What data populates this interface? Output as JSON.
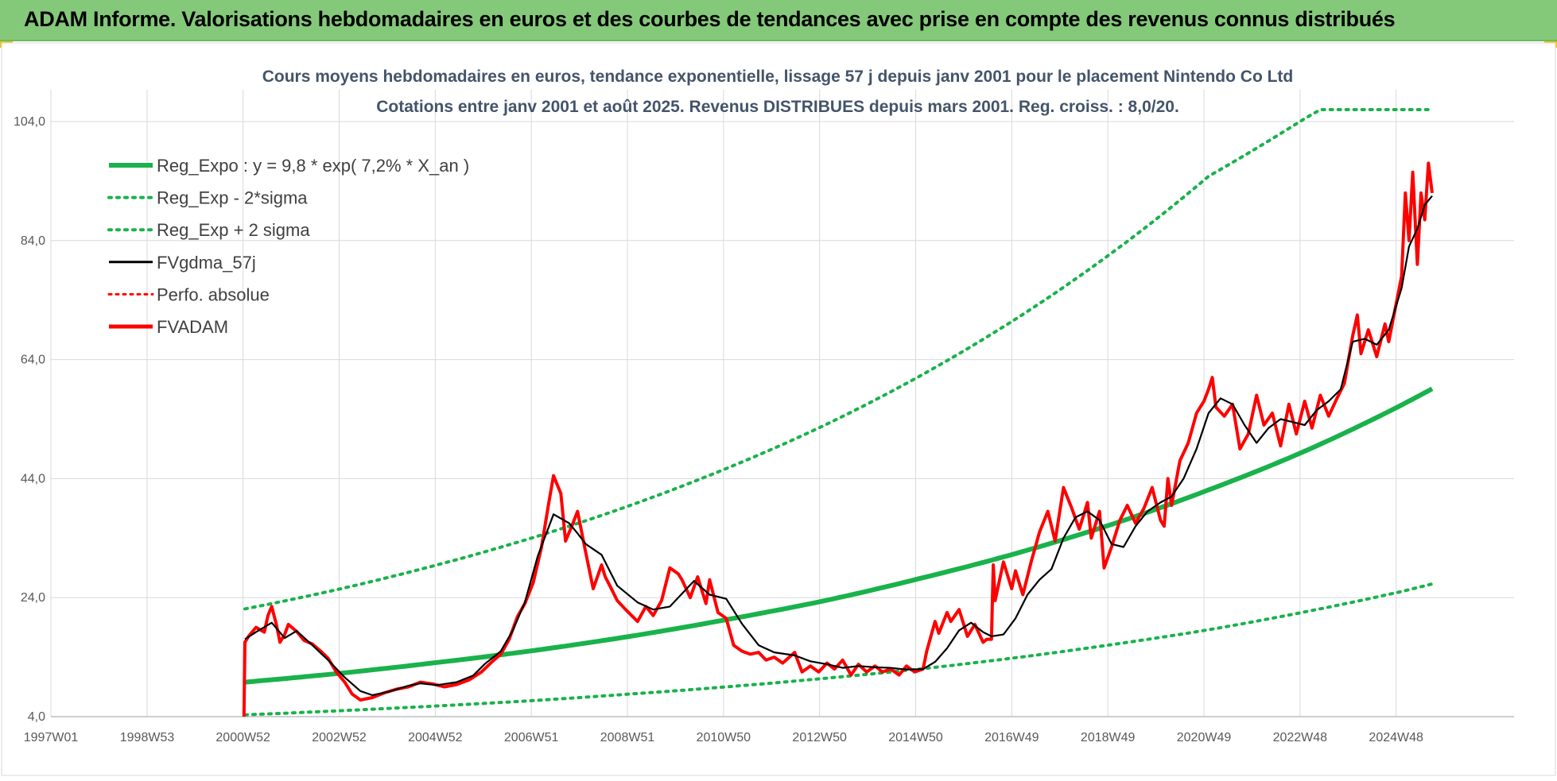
{
  "banner": {
    "title": "ADAM Informe. Valorisations hebdomadaires en euros et des courbes de tendances avec prise en compte des revenus connus distribués"
  },
  "colors": {
    "banner_bg": "#84c97a",
    "reg_expo": "#19b24b",
    "sigma_lines": "#19b24b",
    "fvgdma": "#000000",
    "perfo": "#ff0000",
    "fvadam": "#ff0000",
    "corner_marks": "#f2c200"
  },
  "chart_data": {
    "type": "line",
    "title_line1": "Cours moyens hebdomadaires en euros, tendance exponentielle, lissage 57 j depuis janv 2001  pour le placement Nintendo Co Ltd",
    "title_line2": "Cotations entre janv 2001 et août 2025.  Revenus DISTRIBUES depuis mars 2001. Reg. croiss. : 8,0/20.",
    "xlabel": "",
    "ylabel": "",
    "x_axis_type": "date",
    "xlim": [
      "1997-01-01",
      "2025-08-31"
    ],
    "ylim": [
      4.0,
      104.0
    ],
    "ytick_labels": [
      "4,0",
      "24,0",
      "44,0",
      "64,0",
      "84,0",
      "104,0"
    ],
    "ytick_values": [
      4,
      24,
      44,
      64,
      84,
      104
    ],
    "xtick_labels": [
      "1997W01",
      "1998W53",
      "2000W52",
      "2002W52",
      "2004W52",
      "2006W51",
      "2008W51",
      "2010W50",
      "2012W50",
      "2014W50",
      "2016W49",
      "2018W49",
      "2020W49",
      "2022W48",
      "2024W48"
    ],
    "xtick_dates": [
      "1997-01-01",
      "1998-12-31",
      "2000-12-27",
      "2002-12-25",
      "2004-12-22",
      "2006-12-20",
      "2008-12-17",
      "2010-12-15",
      "2012-12-12",
      "2014-12-10",
      "2016-12-07",
      "2018-12-05",
      "2020-12-02",
      "2022-11-30",
      "2024-11-27"
    ],
    "grid": true,
    "legend_position": "top-left",
    "legend": [
      {
        "label": "Reg_Expo : y = 9,8 * exp( 7,2% *  X_an )",
        "style": "solid-thick",
        "color": "#19b24b"
      },
      {
        "label": "Reg_Exp - 2*sigma",
        "style": "dotted",
        "color": "#19b24b"
      },
      {
        "label": "Reg_Exp + 2 sigma",
        "style": "dotted",
        "color": "#19b24b"
      },
      {
        "label": "FVgdma_57j",
        "style": "solid",
        "color": "#000000"
      },
      {
        "label": "Perfo. absolue",
        "style": "dotted",
        "color": "#ff0000"
      },
      {
        "label": "FVADAM",
        "style": "solid-thick",
        "color": "#ff0000"
      }
    ],
    "series": [
      {
        "name": "Reg_Expo : y = 9,8 * exp( 7,2% *  X_an )",
        "x": [
          "2001-01-10",
          "2003-01-08",
          "2005-01-05",
          "2007-01-03",
          "2009-01-07",
          "2011-01-05",
          "2013-01-02",
          "2015-01-07",
          "2017-01-04",
          "2019-01-02",
          "2021-01-06",
          "2023-01-04",
          "2025-01-01",
          "2025-08-27"
        ],
        "y": [
          9.8,
          11.3,
          13.1,
          15.1,
          17.5,
          20.3,
          23.4,
          27.2,
          31.4,
          36.3,
          42.1,
          48.6,
          56.3,
          59.1
        ]
      },
      {
        "name": "Reg_Exp - 2*sigma",
        "x": [
          "2001-01-10",
          "2003-01-08",
          "2005-01-05",
          "2007-01-03",
          "2009-01-07",
          "2011-01-05",
          "2013-01-02",
          "2015-01-07",
          "2017-01-04",
          "2019-01-02",
          "2021-01-06",
          "2023-01-04",
          "2025-01-01",
          "2025-08-27"
        ],
        "y": [
          4.3,
          5.0,
          5.8,
          6.7,
          7.8,
          9.0,
          10.4,
          12.0,
          13.9,
          16.1,
          18.6,
          21.6,
          25.0,
          26.3
        ]
      },
      {
        "name": "Reg_Exp + 2 sigma",
        "x": [
          "2001-01-10",
          "2003-01-08",
          "2005-01-05",
          "2007-01-03",
          "2009-01-07",
          "2011-01-05",
          "2013-01-02",
          "2015-01-07",
          "2017-01-04",
          "2019-01-02",
          "2021-01-06",
          "2023-01-04",
          "2023-05-03",
          "2025-08-27"
        ],
        "y": [
          22.1,
          25.5,
          29.5,
          34.1,
          39.5,
          45.7,
          52.8,
          61.2,
          70.8,
          81.9,
          94.8,
          104.5,
          106.0,
          106.0
        ]
      },
      {
        "name": "FVgdma_57j",
        "x": [
          "2001-01-10",
          "2001-04-04",
          "2001-08-01",
          "2001-11-07",
          "2002-02-06",
          "2002-06-05",
          "2002-10-02",
          "2003-02-05",
          "2003-06-04",
          "2003-09-03",
          "2004-01-07",
          "2004-06-02",
          "2004-09-01",
          "2005-01-05",
          "2005-06-01",
          "2005-10-05",
          "2006-01-04",
          "2006-05-03",
          "2006-08-02",
          "2006-11-01",
          "2007-02-07",
          "2007-06-06",
          "2007-10-03",
          "2007-12-05",
          "2008-02-06",
          "2008-06-04",
          "2008-10-01",
          "2009-03-04",
          "2009-07-01",
          "2009-11-04",
          "2010-01-06",
          "2010-05-05",
          "2010-09-01",
          "2011-01-05",
          "2011-05-04",
          "2011-09-07",
          "2012-01-04",
          "2012-06-06",
          "2012-10-03",
          "2013-02-06",
          "2013-06-05",
          "2013-10-02",
          "2014-02-05",
          "2014-06-04",
          "2014-10-01",
          "2015-02-04",
          "2015-05-06",
          "2015-08-05",
          "2015-11-04",
          "2016-02-03",
          "2016-05-04",
          "2016-07-06",
          "2016-10-05",
          "2017-01-04",
          "2017-04-05",
          "2017-07-05",
          "2017-10-04",
          "2018-01-03",
          "2018-04-04",
          "2018-07-04",
          "2018-10-03",
          "2019-01-02",
          "2019-04-03",
          "2019-07-03",
          "2019-10-02",
          "2020-01-08",
          "2020-04-01",
          "2020-07-01",
          "2020-10-07",
          "2021-01-06",
          "2021-04-07",
          "2021-07-07",
          "2021-10-06",
          "2022-01-05",
          "2022-04-06",
          "2022-07-06",
          "2022-10-05",
          "2023-01-04",
          "2023-04-05",
          "2023-07-05",
          "2023-10-04",
          "2024-01-03",
          "2024-04-03",
          "2024-07-03",
          "2024-10-02",
          "2025-01-08",
          "2025-03-05",
          "2025-05-07",
          "2025-07-02",
          "2025-08-27"
        ],
        "y": [
          17.0,
          18.2,
          19.8,
          17.2,
          18.4,
          16.0,
          13.5,
          10.6,
          8.3,
          7.6,
          8.2,
          9.2,
          9.6,
          9.3,
          9.8,
          10.9,
          12.9,
          15.0,
          18.5,
          23.2,
          31.0,
          38.0,
          36.5,
          34.8,
          33.0,
          31.2,
          26.0,
          23.2,
          22.0,
          22.5,
          24.0,
          26.8,
          24.5,
          23.8,
          19.6,
          16.0,
          14.8,
          14.3,
          13.3,
          12.8,
          12.2,
          12.5,
          12.3,
          12.2,
          11.9,
          12.0,
          13.2,
          15.5,
          18.5,
          19.8,
          18.2,
          17.5,
          17.8,
          20.5,
          24.5,
          27.0,
          28.8,
          34.0,
          37.5,
          38.5,
          37.0,
          33.0,
          32.5,
          36.0,
          38.5,
          40.0,
          41.0,
          44.0,
          49.0,
          55.0,
          57.5,
          56.5,
          53.0,
          50.0,
          52.5,
          54.0,
          53.5,
          53.0,
          55.5,
          57.0,
          59.0,
          67.0,
          67.5,
          66.5,
          69.0,
          76.0,
          83.0,
          86.0,
          90.0,
          91.5
        ]
      },
      {
        "name": "FVADAM",
        "x": [
          "2001-01-03",
          "2001-01-10",
          "2001-02-07",
          "2001-04-04",
          "2001-06-06",
          "2001-07-04",
          "2001-08-01",
          "2001-09-05",
          "2001-10-03",
          "2001-11-07",
          "2001-12-05",
          "2002-02-06",
          "2002-04-03",
          "2002-06-05",
          "2002-08-07",
          "2002-10-02",
          "2002-12-04",
          "2003-02-05",
          "2003-04-02",
          "2003-06-04",
          "2003-09-03",
          "2003-12-03",
          "2004-03-03",
          "2004-06-02",
          "2004-09-01",
          "2004-12-01",
          "2005-03-02",
          "2005-06-01",
          "2005-09-07",
          "2005-12-07",
          "2006-03-01",
          "2006-05-03",
          "2006-07-05",
          "2006-09-06",
          "2006-11-01",
          "2007-01-03",
          "2007-03-07",
          "2007-05-02",
          "2007-06-06",
          "2007-08-01",
          "2007-09-05",
          "2007-10-31",
          "2007-12-05",
          "2008-02-06",
          "2008-04-02",
          "2008-06-04",
          "2008-07-02",
          "2008-08-06",
          "2008-10-01",
          "2008-12-03",
          "2009-03-04",
          "2009-05-06",
          "2009-07-01",
          "2009-09-02",
          "2009-11-04",
          "2010-01-06",
          "2010-02-03",
          "2010-04-07",
          "2010-06-02",
          "2010-08-04",
          "2010-09-01",
          "2010-11-03",
          "2011-01-05",
          "2011-03-02",
          "2011-05-04",
          "2011-07-06",
          "2011-09-07",
          "2011-11-02",
          "2012-01-04",
          "2012-03-07",
          "2012-06-06",
          "2012-08-01",
          "2012-10-03",
          "2012-12-05",
          "2013-02-06",
          "2013-04-03",
          "2013-06-05",
          "2013-08-07",
          "2013-10-02",
          "2013-12-04",
          "2014-02-05",
          "2014-04-02",
          "2014-06-04",
          "2014-08-06",
          "2014-10-01",
          "2014-12-03",
          "2015-02-04",
          "2015-03-04",
          "2015-05-06",
          "2015-06-03",
          "2015-08-05",
          "2015-09-02",
          "2015-11-04",
          "2016-01-06",
          "2016-03-02",
          "2016-05-04",
          "2016-06-01",
          "2016-07-06",
          "2016-07-20",
          "2016-08-03",
          "2016-10-05",
          "2016-12-07",
          "2017-01-04",
          "2017-03-01",
          "2017-05-03",
          "2017-07-05",
          "2017-09-06",
          "2017-11-01",
          "2018-01-03",
          "2018-03-07",
          "2018-05-02",
          "2018-07-04",
          "2018-08-01",
          "2018-10-03",
          "2018-11-07",
          "2019-01-02",
          "2019-03-06",
          "2019-05-01",
          "2019-07-03",
          "2019-09-04",
          "2019-11-06",
          "2020-01-08",
          "2020-02-05",
          "2020-03-04",
          "2020-04-01",
          "2020-06-03",
          "2020-08-05",
          "2020-10-07",
          "2020-12-02",
          "2021-01-06",
          "2021-02-03",
          "2021-03-03",
          "2021-05-05",
          "2021-07-07",
          "2021-09-01",
          "2021-11-03",
          "2022-01-05",
          "2022-03-02",
          "2022-05-04",
          "2022-07-06",
          "2022-09-07",
          "2022-11-02",
          "2023-01-04",
          "2023-03-01",
          "2023-05-03",
          "2023-07-05",
          "2023-09-06",
          "2023-11-01",
          "2024-01-03",
          "2024-02-07",
          "2024-03-06",
          "2024-05-01",
          "2024-07-03",
          "2024-09-04",
          "2024-10-02",
          "2024-11-06",
          "2025-01-08",
          "2025-02-05",
          "2025-03-05",
          "2025-04-02",
          "2025-05-07",
          "2025-06-04",
          "2025-07-02",
          "2025-07-30",
          "2025-08-27"
        ],
        "y": [
          4.0,
          16.5,
          17.5,
          19.0,
          18.2,
          21.0,
          22.5,
          19.5,
          16.5,
          17.8,
          19.5,
          18.3,
          16.8,
          16.2,
          15.0,
          13.8,
          11.5,
          9.8,
          7.8,
          6.8,
          7.2,
          8.0,
          8.6,
          9.0,
          9.8,
          9.5,
          9.0,
          9.4,
          10.2,
          11.5,
          13.3,
          14.5,
          17.0,
          20.8,
          23.0,
          26.5,
          32.5,
          40.0,
          44.5,
          41.5,
          33.5,
          36.5,
          38.5,
          31.5,
          25.5,
          29.5,
          27.5,
          26.0,
          23.5,
          22.0,
          20.0,
          22.5,
          21.0,
          23.5,
          29.0,
          28.0,
          27.0,
          24.0,
          27.5,
          23.0,
          27.0,
          21.5,
          20.5,
          16.0,
          15.0,
          14.5,
          14.8,
          13.5,
          14.0,
          13.0,
          14.8,
          11.5,
          12.5,
          11.5,
          13.0,
          12.0,
          13.5,
          11.0,
          12.8,
          11.5,
          12.5,
          11.5,
          12.0,
          11.0,
          12.5,
          11.5,
          12.0,
          15.0,
          20.0,
          18.0,
          21.5,
          20.0,
          22.0,
          17.5,
          19.5,
          16.5,
          17.0,
          17.0,
          29.5,
          23.5,
          30.0,
          25.5,
          28.5,
          24.5,
          30.0,
          35.0,
          38.5,
          33.5,
          42.5,
          39.0,
          35.5,
          40.0,
          34.0,
          38.5,
          29.0,
          32.5,
          37.0,
          39.5,
          36.5,
          39.0,
          42.5,
          37.0,
          36.0,
          44.0,
          39.5,
          47.0,
          50.0,
          55.0,
          57.0,
          59.0,
          61.0,
          56.0,
          54.5,
          56.5,
          49.0,
          51.5,
          58.0,
          53.0,
          55.0,
          49.5,
          56.5,
          51.5,
          57.0,
          52.5,
          58.0,
          54.5,
          57.5,
          60.0,
          68.0,
          71.5,
          65.0,
          69.0,
          64.5,
          70.0,
          67.0,
          71.0,
          78.0,
          92.0,
          84.0,
          95.5,
          80.0,
          92.0,
          87.5,
          97.0,
          92.0
        ]
      }
    ]
  }
}
